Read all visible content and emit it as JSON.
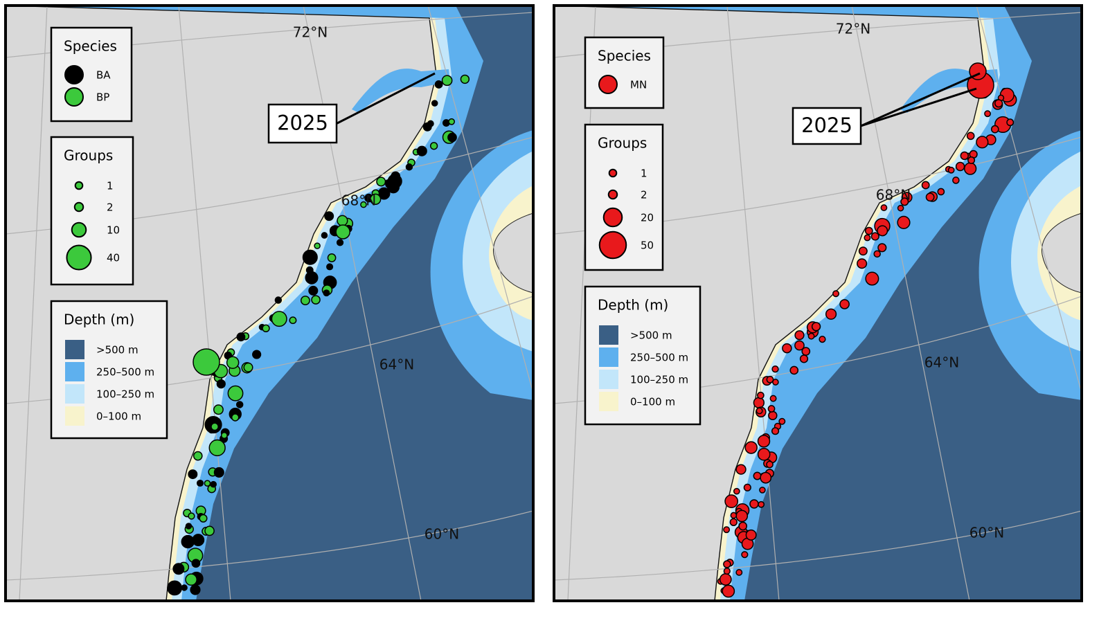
{
  "panels": [
    {
      "species": {
        "title": "Species",
        "entries": [
          {
            "label": "BA",
            "color": "#000000"
          },
          {
            "label": "BP",
            "color": "#3cc93c"
          }
        ]
      },
      "groups": {
        "title": "Groups",
        "sizes": [
          1,
          2,
          10,
          40
        ]
      },
      "depth": {
        "title": "Depth (m)",
        "entries": [
          {
            "label": ">500 m",
            "color": "#3a5f85"
          },
          {
            "label": "250–500 m",
            "color": "#5eb0ee"
          },
          {
            "label": "100–250 m",
            "color": "#c2e6fa"
          },
          {
            "label": "0–100 m",
            "color": "#f8f3cc"
          }
        ]
      },
      "latitudes": [
        "72°N",
        "68°N",
        "64°N",
        "60°N"
      ],
      "annotation": "2025"
    },
    {
      "species": {
        "title": "Species",
        "entries": [
          {
            "label": "MN",
            "color": "#e8191c"
          }
        ]
      },
      "groups": {
        "title": "Groups",
        "sizes": [
          1,
          2,
          20,
          50
        ]
      },
      "depth": {
        "title": "Depth (m)",
        "entries": [
          {
            "label": ">500 m",
            "color": "#3a5f85"
          },
          {
            "label": "250–500 m",
            "color": "#5eb0ee"
          },
          {
            "label": "100–250 m",
            "color": "#c2e6fa"
          },
          {
            "label": "0–100 m",
            "color": "#f8f3cc"
          }
        ]
      },
      "latitudes": [
        "72°N",
        "68°N",
        "64°N",
        "60°N"
      ],
      "annotation": "2025"
    }
  ]
}
